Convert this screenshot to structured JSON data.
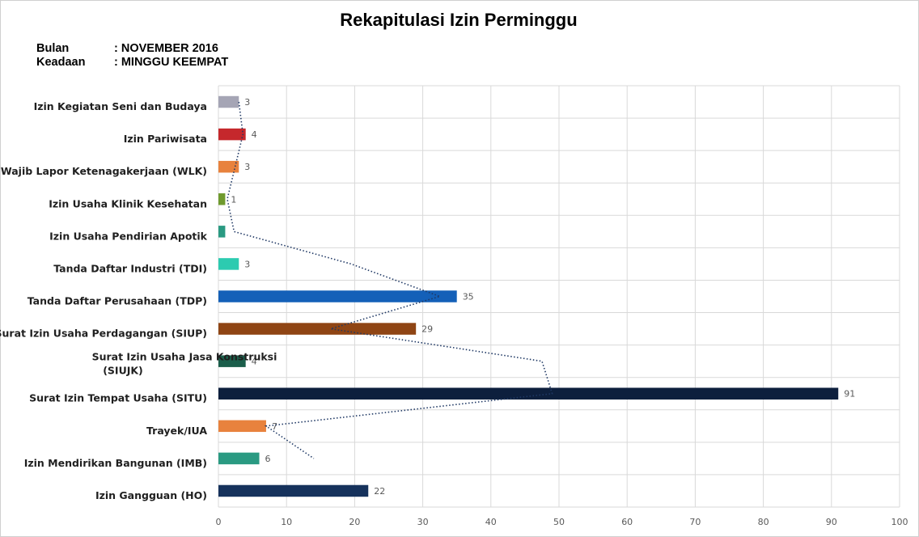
{
  "header": {
    "title": "Rekapitulasi Izin Perminggu",
    "bulan_label": "Bulan",
    "bulan_value": ": NOVEMBER 2016",
    "keadaan_label": "Keadaan",
    "keadaan_value": ": MINGGU KEEMPAT"
  },
  "chart_data": {
    "type": "bar",
    "orientation": "horizontal",
    "title": "Rekapitulasi Izin Perminggu",
    "categories": [
      "Izin Kegiatan Seni dan Budaya",
      "Izin Pariwisata",
      "Wajib Lapor Ketenagakerjaan (WLK)",
      "Izin Usaha Klinik Kesehatan",
      "Izin Usaha Pendirian Apotik",
      "Tanda Daftar Industri (TDI)",
      "Tanda Daftar Perusahaan (TDP)",
      "Surat Izin Usaha Perdagangan (SIUP)",
      "Surat Izin Usaha Jasa Konstruksi (SIUJK)",
      "Surat Izin Tempat Usaha (SITU)",
      "Trayek/IUA",
      "Izin Mendirikan Bangunan (IMB)",
      "Izin Gangguan (HO)"
    ],
    "values": [
      3,
      4,
      3,
      1,
      1,
      3,
      35,
      29,
      4,
      91,
      7,
      6,
      22
    ],
    "value_labels": [
      "3",
      "4",
      "3",
      "1",
      "",
      "3",
      "35",
      "29",
      "4",
      "91",
      "7",
      "6",
      "22"
    ],
    "colors": [
      "#a5a5b5",
      "#c5282c",
      "#e8823d",
      "#6f9a2f",
      "#2a9a82",
      "#2ccbb0",
      "#1460b8",
      "#8f4514",
      "#1b5e4b",
      "#0d1f3d",
      "#e8823d",
      "#2a9a82",
      "#16325c"
    ],
    "xlim": [
      0,
      100
    ],
    "xticks": [
      0,
      10,
      20,
      30,
      40,
      50,
      60,
      70,
      80,
      90,
      100
    ],
    "grid": true,
    "trendline": {
      "style": "dotted",
      "color": "#1f3864",
      "points": [
        [
          3,
          0
        ],
        [
          3.6,
          1
        ],
        [
          1.3,
          3
        ],
        [
          2.3,
          4
        ],
        [
          19.5,
          5
        ],
        [
          32.5,
          6
        ],
        [
          16.5,
          7
        ],
        [
          47.5,
          8
        ],
        [
          49,
          9
        ],
        [
          7,
          10
        ],
        [
          14,
          11
        ]
      ]
    }
  }
}
